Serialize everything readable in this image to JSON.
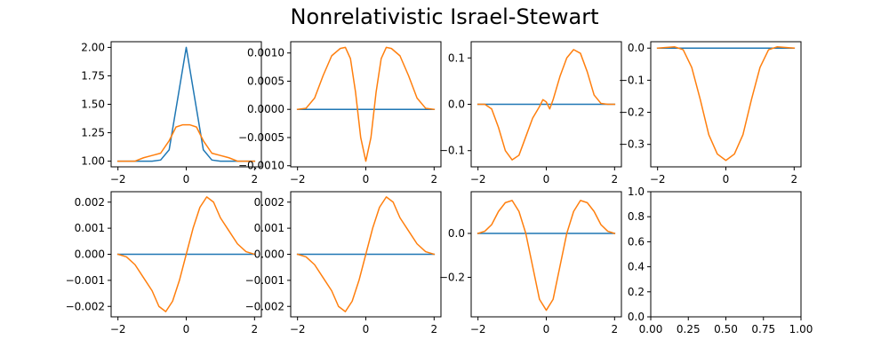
{
  "figure": {
    "title": "Nonrelativistic Israel-Stewart"
  },
  "colors": {
    "series_1": "#1f77b4",
    "series_2": "#ff7f0e"
  },
  "chart_data": [
    {
      "type": "line",
      "xlim": [
        -2.2,
        2.2
      ],
      "ylim": [
        0.95,
        2.05
      ],
      "xticks": [
        -2,
        0,
        2
      ],
      "yticks": [
        1.0,
        1.25,
        1.5,
        1.75,
        2.0
      ],
      "ytick_labels": [
        "1.00",
        "1.25",
        "1.50",
        "1.75",
        "2.00"
      ],
      "series": [
        {
          "x": [
            -2,
            -1.5,
            -1,
            -0.75,
            -0.5,
            -0.25,
            0,
            0.25,
            0.5,
            0.75,
            1,
            1.5,
            2
          ],
          "values": [
            1.0,
            1.0,
            1.0,
            1.01,
            1.1,
            1.55,
            2.0,
            1.55,
            1.1,
            1.01,
            1.0,
            1.0,
            1.0
          ]
        },
        {
          "x": [
            -2,
            -1.5,
            -1.25,
            -1,
            -0.75,
            -0.5,
            -0.3,
            -0.1,
            0,
            0.1,
            0.3,
            0.5,
            0.75,
            1,
            1.25,
            1.5,
            2
          ],
          "values": [
            1.0,
            1.0,
            1.03,
            1.05,
            1.07,
            1.18,
            1.3,
            1.32,
            1.32,
            1.32,
            1.3,
            1.18,
            1.07,
            1.05,
            1.03,
            1.0,
            1.0
          ]
        }
      ]
    },
    {
      "type": "line",
      "xlim": [
        -2.2,
        2.2
      ],
      "ylim": [
        -0.00102,
        0.0012
      ],
      "xticks": [
        -2,
        0,
        2
      ],
      "yticks": [
        -0.001,
        -0.0005,
        0.0,
        0.0005,
        0.001
      ],
      "ytick_labels": [
        "−0.0010",
        "−0.0005",
        "0.0000",
        "0.0005",
        "0.0010"
      ],
      "series": [
        {
          "x": [
            -2,
            2
          ],
          "values": [
            0,
            0
          ]
        },
        {
          "x": [
            -2,
            -1.75,
            -1.5,
            -1.25,
            -1,
            -0.75,
            -0.6,
            -0.45,
            -0.3,
            -0.15,
            0,
            0.15,
            0.3,
            0.45,
            0.6,
            0.75,
            1,
            1.25,
            1.5,
            1.75,
            2
          ],
          "values": [
            0,
            2e-05,
            0.0002,
            0.0006,
            0.00095,
            0.00108,
            0.0011,
            0.0009,
            0.0003,
            -0.0005,
            -0.00092,
            -0.0005,
            0.0003,
            0.0009,
            0.0011,
            0.00108,
            0.00095,
            0.0006,
            0.0002,
            2e-05,
            0
          ]
        }
      ]
    },
    {
      "type": "line",
      "xlim": [
        -2.2,
        2.2
      ],
      "ylim": [
        -0.135,
        0.135
      ],
      "xticks": [
        -2,
        0,
        2
      ],
      "yticks": [
        -0.1,
        0.0,
        0.1
      ],
      "ytick_labels": [
        "−0.1",
        "0.0",
        "0.1"
      ],
      "series": [
        {
          "x": [
            -2,
            2
          ],
          "values": [
            0,
            0
          ]
        },
        {
          "x": [
            -2,
            -1.8,
            -1.6,
            -1.4,
            -1.2,
            -1,
            -0.8,
            -0.6,
            -0.4,
            -0.2,
            -0.1,
            0,
            0.1,
            0.2,
            0.4,
            0.6,
            0.8,
            1,
            1.2,
            1.4,
            1.6,
            1.8,
            2
          ],
          "values": [
            0,
            0,
            -0.01,
            -0.05,
            -0.1,
            -0.12,
            -0.11,
            -0.07,
            -0.03,
            -0.005,
            0.01,
            0.005,
            -0.01,
            0.01,
            0.06,
            0.1,
            0.118,
            0.11,
            0.07,
            0.02,
            0.002,
            0,
            0
          ]
        }
      ]
    },
    {
      "type": "line",
      "xlim": [
        -2.2,
        2.2
      ],
      "ylim": [
        -0.37,
        0.02
      ],
      "xticks": [
        -2,
        0,
        2
      ],
      "yticks": [
        -0.3,
        -0.2,
        -0.1,
        0.0
      ],
      "ytick_labels": [
        "−0.3",
        "−0.2",
        "−0.1",
        "0.0"
      ],
      "series": [
        {
          "x": [
            -2,
            2
          ],
          "values": [
            0,
            0
          ]
        },
        {
          "x": [
            -2,
            -1.75,
            -1.5,
            -1.25,
            -1,
            -0.75,
            -0.5,
            -0.25,
            0,
            0.25,
            0.5,
            0.75,
            1,
            1.25,
            1.5,
            1.75,
            2
          ],
          "values": [
            0,
            0.002,
            0.004,
            -0.005,
            -0.06,
            -0.16,
            -0.27,
            -0.33,
            -0.35,
            -0.33,
            -0.27,
            -0.16,
            -0.06,
            -0.005,
            0.004,
            0.002,
            0
          ]
        }
      ]
    },
    {
      "type": "line",
      "xlim": [
        -2.2,
        2.2
      ],
      "ylim": [
        -0.0024,
        0.0024
      ],
      "xticks": [
        -2,
        0,
        2
      ],
      "yticks": [
        -0.002,
        -0.001,
        0.0,
        0.001,
        0.002
      ],
      "ytick_labels": [
        "−0.002",
        "−0.001",
        "0.000",
        "0.001",
        "0.002"
      ],
      "series": [
        {
          "x": [
            -2,
            2
          ],
          "values": [
            0,
            0
          ]
        },
        {
          "x": [
            -2,
            -1.75,
            -1.5,
            -1.25,
            -1,
            -0.8,
            -0.6,
            -0.4,
            -0.2,
            0,
            0.2,
            0.4,
            0.6,
            0.8,
            1,
            1.25,
            1.5,
            1.75,
            2
          ],
          "values": [
            0,
            -0.0001,
            -0.0004,
            -0.0009,
            -0.0014,
            -0.002,
            -0.0022,
            -0.0018,
            -0.001,
            0,
            0.001,
            0.0018,
            0.0022,
            0.002,
            0.0014,
            0.0009,
            0.0004,
            0.0001,
            0
          ]
        }
      ]
    },
    {
      "type": "line",
      "xlim": [
        -2.2,
        2.2
      ],
      "ylim": [
        -0.0024,
        0.0024
      ],
      "xticks": [
        -2,
        0,
        2
      ],
      "yticks": [
        -0.002,
        -0.001,
        0.0,
        0.001,
        0.002
      ],
      "ytick_labels": [
        "−0.002",
        "−0.001",
        "0.000",
        "0.001",
        "0.002"
      ],
      "series": [
        {
          "x": [
            -2,
            2
          ],
          "values": [
            0,
            0
          ]
        },
        {
          "x": [
            -2,
            -1.75,
            -1.5,
            -1.25,
            -1,
            -0.8,
            -0.6,
            -0.4,
            -0.2,
            0,
            0.2,
            0.4,
            0.6,
            0.8,
            1,
            1.25,
            1.5,
            1.75,
            2
          ],
          "values": [
            0,
            -0.0001,
            -0.0004,
            -0.0009,
            -0.0014,
            -0.002,
            -0.0022,
            -0.0018,
            -0.001,
            0,
            0.001,
            0.0018,
            0.0022,
            0.002,
            0.0014,
            0.0009,
            0.0004,
            0.0001,
            0
          ]
        }
      ]
    },
    {
      "type": "line",
      "xlim": [
        -2.2,
        2.2
      ],
      "ylim": [
        -0.38,
        0.19
      ],
      "xticks": [
        -2,
        0,
        2
      ],
      "yticks": [
        -0.2,
        0.0
      ],
      "ytick_labels": [
        "−0.2",
        "0.0"
      ],
      "series": [
        {
          "x": [
            -2,
            2
          ],
          "values": [
            0,
            0
          ]
        },
        {
          "x": [
            -2,
            -1.8,
            -1.6,
            -1.4,
            -1.2,
            -1,
            -0.8,
            -0.6,
            -0.4,
            -0.2,
            0,
            0.2,
            0.4,
            0.6,
            0.8,
            1,
            1.2,
            1.4,
            1.6,
            1.8,
            2
          ],
          "values": [
            0,
            0.01,
            0.04,
            0.1,
            0.14,
            0.15,
            0.1,
            0.0,
            -0.15,
            -0.3,
            -0.35,
            -0.3,
            -0.15,
            0.0,
            0.1,
            0.15,
            0.14,
            0.1,
            0.04,
            0.01,
            0
          ]
        }
      ]
    },
    {
      "type": "line",
      "xlim": [
        0,
        1
      ],
      "ylim": [
        0,
        1
      ],
      "xticks": [
        0,
        0.25,
        0.5,
        0.75,
        1.0
      ],
      "xtick_labels": [
        "0.00",
        "0.25",
        "0.50",
        "0.75",
        "1.00"
      ],
      "yticks": [
        0,
        0.2,
        0.4,
        0.6,
        0.8,
        1.0
      ],
      "ytick_labels": [
        "0.0",
        "0.2",
        "0.4",
        "0.6",
        "0.8",
        "1.0"
      ],
      "series": []
    }
  ]
}
